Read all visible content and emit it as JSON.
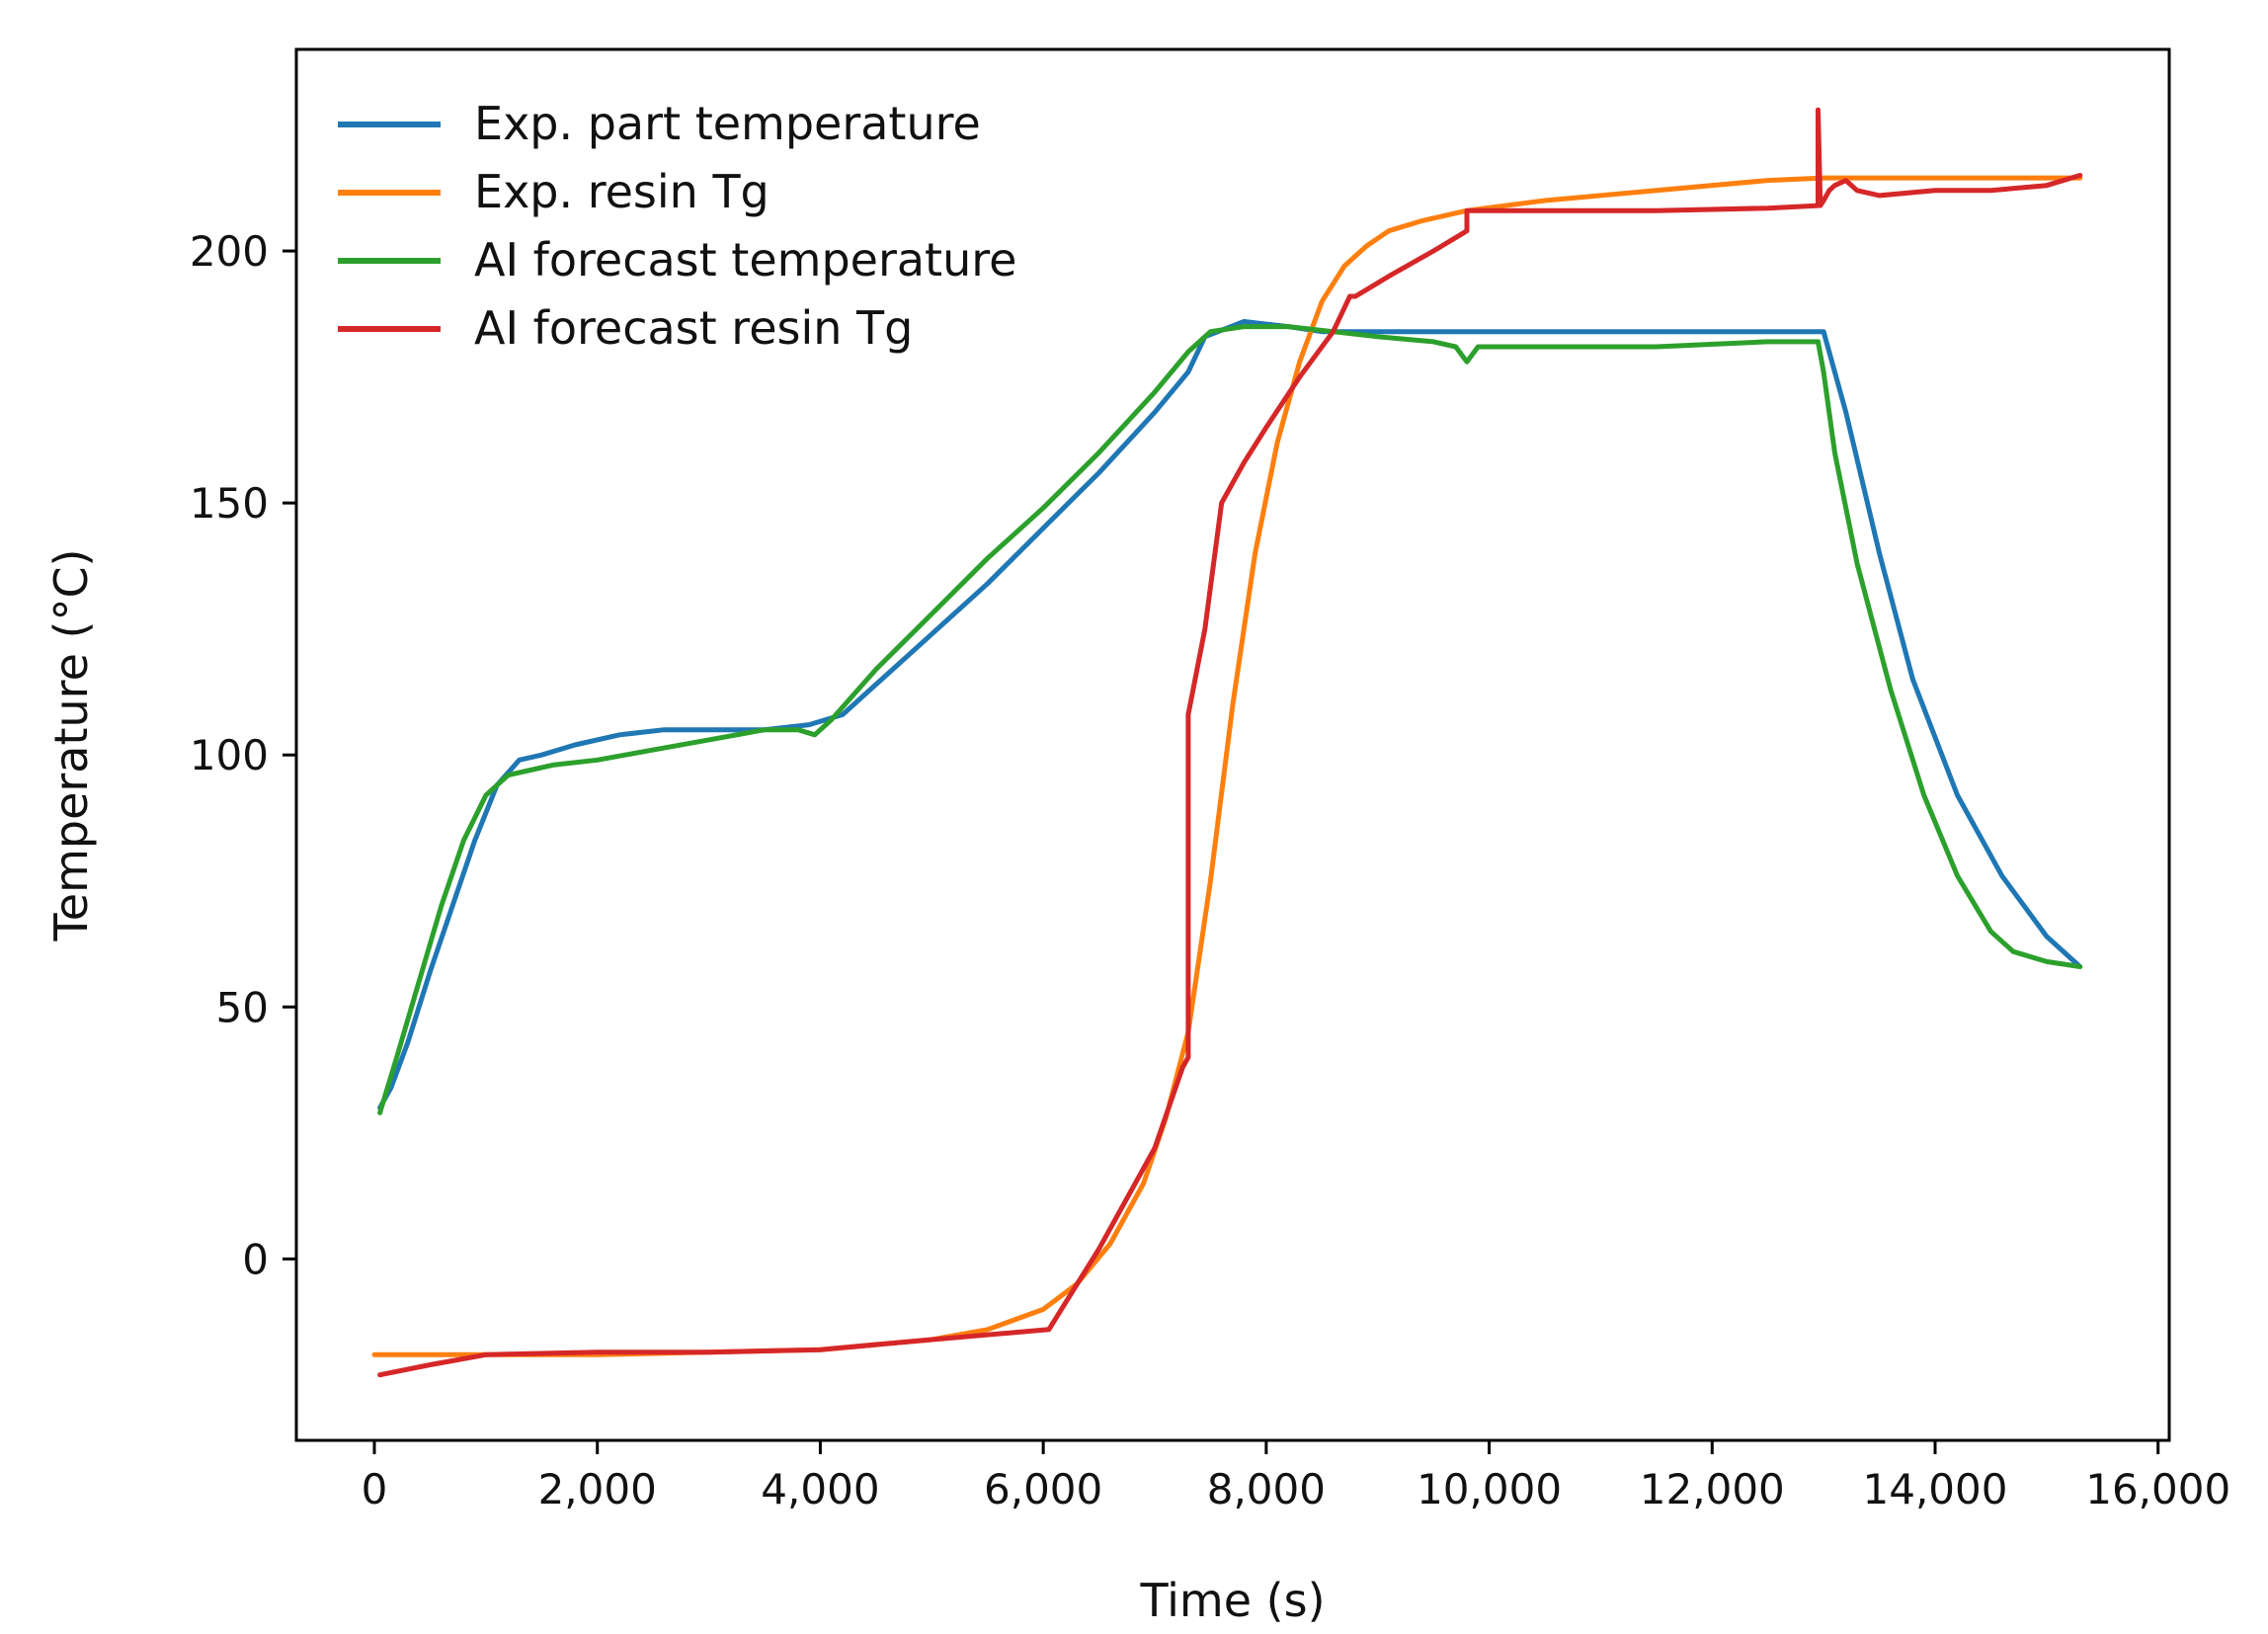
{
  "chart_data": {
    "type": "line",
    "title": "",
    "xlabel": "Time (s)",
    "ylabel": "Temperature (°C)",
    "xlim": [
      -700,
      16100
    ],
    "ylim": [
      -36,
      240
    ],
    "xticks": [
      0,
      2000,
      4000,
      6000,
      8000,
      10000,
      12000,
      14000,
      16000
    ],
    "xtick_labels": [
      "0",
      "2,000",
      "4,000",
      "6,000",
      "8,000",
      "10,000",
      "12,000",
      "14,000",
      "16,000"
    ],
    "yticks": [
      0,
      50,
      100,
      150,
      200
    ],
    "ytick_labels": [
      "0",
      "50",
      "100",
      "150",
      "200"
    ],
    "grid": false,
    "legend_position": "top-left",
    "series": [
      {
        "name": "Exp. part temperature",
        "color": "#1f77b4",
        "x": [
          50,
          150,
          300,
          500,
          700,
          900,
          1100,
          1300,
          1500,
          1800,
          2200,
          2600,
          3000,
          3500,
          3900,
          4200,
          4600,
          5000,
          5500,
          6000,
          6500,
          7000,
          7300,
          7450,
          7800,
          8200,
          8500,
          9000,
          10000,
          11000,
          12000,
          12500,
          12900,
          13000,
          13200,
          13500,
          13800,
          14200,
          14600,
          15000,
          15300
        ],
        "y": [
          30,
          34,
          43,
          57,
          70,
          83,
          94,
          99,
          100,
          102,
          104,
          105,
          105,
          105,
          106,
          108,
          116,
          124,
          134,
          145,
          156,
          168,
          176,
          183,
          186,
          185,
          184,
          184,
          184,
          184,
          184,
          184,
          184,
          184,
          168,
          140,
          115,
          92,
          76,
          64,
          58
        ]
      },
      {
        "name": "Exp. resin Tg",
        "color": "#ff7f0e",
        "x": [
          0,
          1000,
          2000,
          3000,
          4000,
          5000,
          5500,
          6000,
          6300,
          6600,
          6900,
          7100,
          7300,
          7500,
          7700,
          7900,
          8100,
          8300,
          8500,
          8700,
          8900,
          9100,
          9400,
          9800,
          10500,
          11500,
          12500,
          13000,
          14000,
          15000,
          15300
        ],
        "y": [
          -19,
          -19,
          -19,
          -18.5,
          -18,
          -16,
          -14,
          -10,
          -5,
          3,
          15,
          28,
          45,
          75,
          110,
          140,
          162,
          178,
          190,
          197,
          201,
          204,
          206,
          208,
          210,
          212,
          214,
          214.5,
          214.5,
          214.5,
          214.5
        ]
      },
      {
        "name": "AI forecast temperature",
        "color": "#2ca02c",
        "x": [
          50,
          200,
          400,
          600,
          800,
          1000,
          1200,
          1400,
          1600,
          2000,
          2500,
          3000,
          3500,
          3800,
          3950,
          4100,
          4500,
          5000,
          5500,
          6000,
          6500,
          7000,
          7300,
          7500,
          7800,
          8200,
          8600,
          9000,
          9500,
          9700,
          9800,
          9900,
          10500,
          11500,
          12500,
          12950,
          13000,
          13100,
          13300,
          13600,
          13900,
          14200,
          14500,
          14700,
          15000,
          15300
        ],
        "y": [
          29,
          40,
          55,
          70,
          83,
          92,
          96,
          97,
          98,
          99,
          101,
          103,
          105,
          105,
          104,
          107,
          117,
          128,
          139,
          149,
          160,
          172,
          180,
          184,
          185,
          185,
          184,
          183,
          182,
          181,
          178,
          181,
          181,
          181,
          182,
          182,
          176,
          160,
          138,
          113,
          92,
          76,
          65,
          61,
          59,
          58
        ]
      },
      {
        "name": "AI forecast resin Tg",
        "color": "#d62728",
        "x": [
          50,
          500,
          1000,
          2000,
          3000,
          4000,
          5000,
          6050,
          6500,
          7000,
          7250,
          7300,
          7300,
          7450,
          7600,
          7800,
          8000,
          8300,
          8600,
          8750,
          8800,
          9100,
          9500,
          9800,
          9800,
          9850,
          10500,
          11500,
          12500,
          12950,
          12950,
          12970,
          13000,
          13050,
          13100,
          13200,
          13300,
          13500,
          14000,
          14500,
          15000,
          15300
        ],
        "y": [
          -23,
          -21,
          -19,
          -18.5,
          -18.5,
          -18,
          -16,
          -14,
          2,
          22,
          38,
          40,
          108,
          125,
          150,
          158,
          165,
          175,
          184,
          191,
          191,
          195,
          200,
          204,
          208,
          208,
          208,
          208,
          208.5,
          209,
          228,
          209,
          210,
          212,
          213,
          214,
          212,
          211,
          212,
          212,
          213,
          215
        ]
      }
    ]
  }
}
